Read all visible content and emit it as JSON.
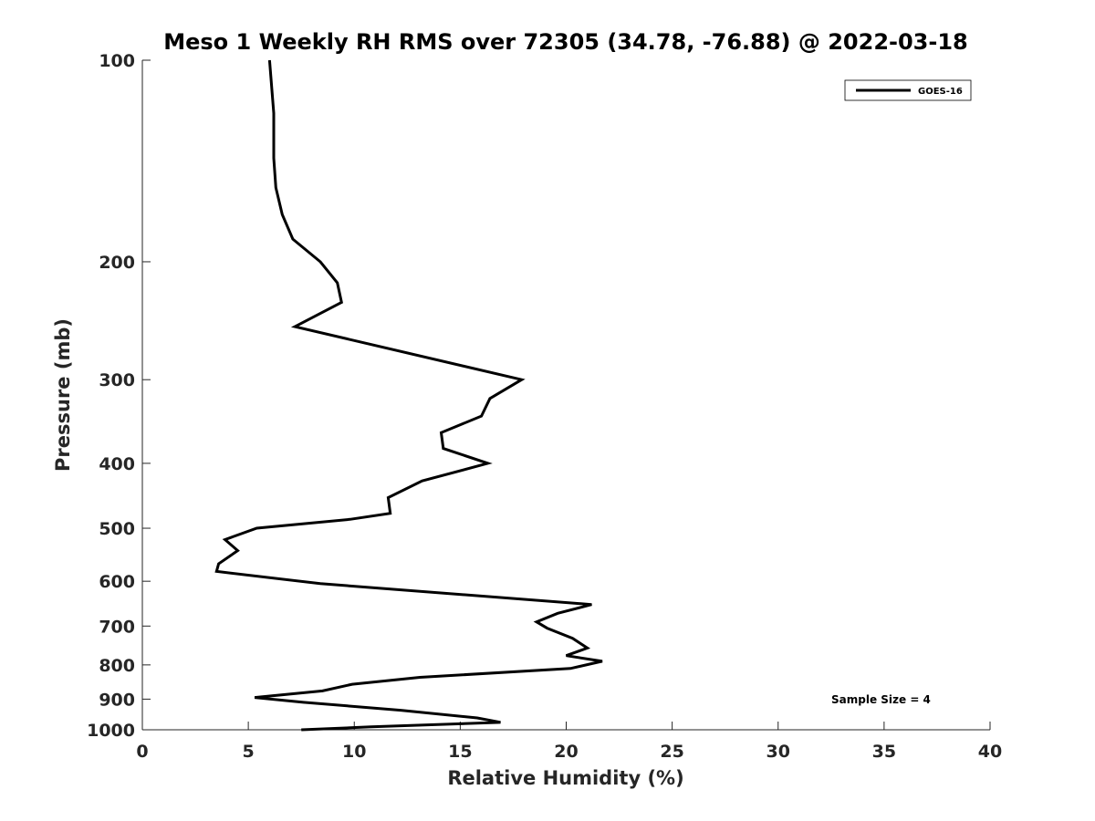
{
  "chart_data": {
    "type": "line",
    "title": "Meso 1 Weekly RH RMS over 72305 (34.78, -76.88) @ 2022-03-18",
    "xlabel": "Relative Humidity (%)",
    "ylabel": "Pressure (mb)",
    "xlim": [
      0,
      40
    ],
    "ylim": [
      100,
      1000
    ],
    "y_scale": "log",
    "y_direction": "reversed",
    "x_ticks": [
      0,
      5,
      10,
      15,
      20,
      25,
      30,
      35,
      40
    ],
    "y_ticks": [
      100,
      200,
      300,
      400,
      500,
      600,
      700,
      800,
      900,
      1000
    ],
    "grid": false,
    "legend_position": "top-right",
    "annotation": "Sample Size = 4",
    "series": [
      {
        "name": "GOES-16",
        "color": "#000000",
        "x": [
          6.0,
          6.2,
          6.2,
          6.3,
          6.6,
          7.1,
          8.4,
          9.2,
          9.4,
          7.2,
          17.9,
          16.4,
          16.0,
          14.1,
          14.2,
          16.3,
          13.2,
          11.6,
          11.7,
          9.8,
          5.4,
          3.9,
          4.5,
          3.6,
          3.5,
          8.4,
          21.2,
          19.6,
          18.6,
          19.1,
          20.3,
          21.0,
          20.0,
          21.7,
          20.2,
          13.1,
          9.9,
          8.5,
          5.3,
          7.6,
          12.2,
          15.8,
          16.9,
          10.8,
          7.5
        ],
        "y": [
          100,
          120,
          140,
          155,
          170,
          185,
          200,
          215,
          230,
          250,
          300,
          320,
          340,
          360,
          380,
          400,
          425,
          450,
          475,
          485,
          500,
          520,
          540,
          565,
          580,
          605,
          650,
          670,
          690,
          705,
          730,
          755,
          775,
          790,
          810,
          835,
          855,
          875,
          895,
          910,
          935,
          960,
          975,
          990,
          1000
        ]
      }
    ]
  }
}
